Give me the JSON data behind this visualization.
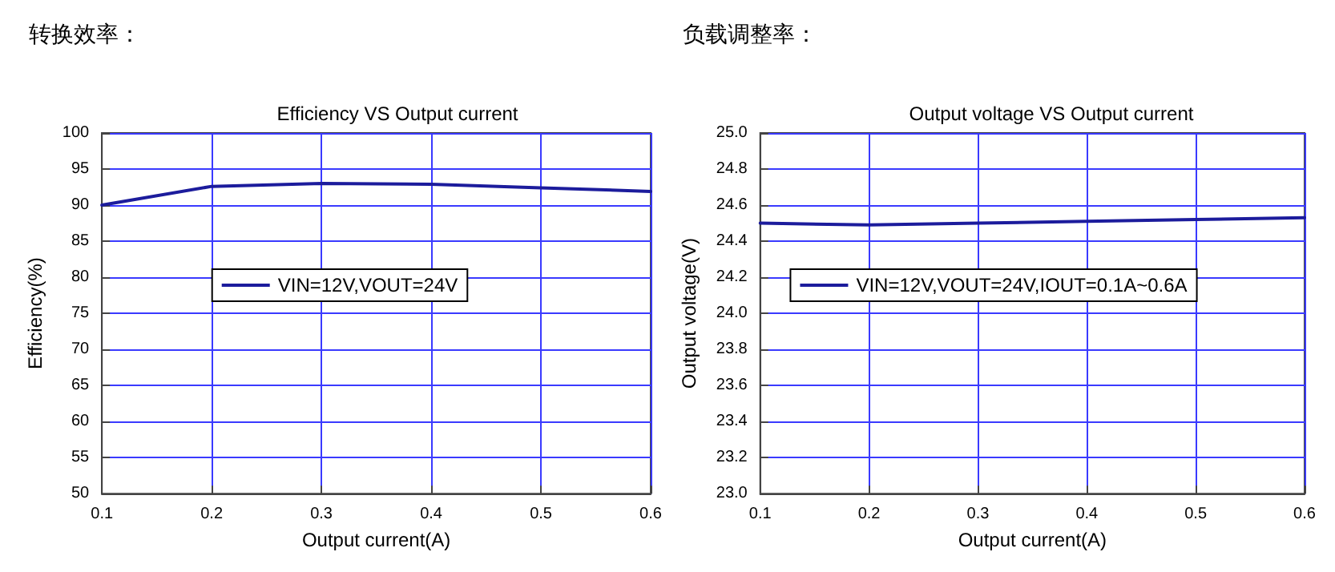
{
  "chart_data": [
    {
      "type": "line",
      "title": "转换效率：",
      "subtitle": "Efficiency VS Output current",
      "xlabel": "Output current(A)",
      "ylabel": "Efficiency(%)",
      "x": [
        0.1,
        0.2,
        0.3,
        0.4,
        0.5,
        0.6
      ],
      "series": [
        {
          "name": "VIN=12V,VOUT=24V",
          "color": "#1c1c9c",
          "values": [
            90,
            92.6,
            93.0,
            92.9,
            92.4,
            91.9
          ]
        }
      ],
      "xlim": [
        0.1,
        0.6
      ],
      "xticks": [
        0.1,
        0.2,
        0.3,
        0.4,
        0.5,
        0.6
      ],
      "ylim": [
        50,
        100
      ],
      "yticks": [
        50,
        55,
        60,
        65,
        70,
        75,
        80,
        85,
        90,
        95,
        100
      ],
      "grid": true,
      "legend": "center",
      "marker": "none",
      "line_style": "solid"
    },
    {
      "type": "line",
      "title": "负载调整率：",
      "subtitle": "Output voltage VS Output current",
      "xlabel": "Output current(A)",
      "ylabel": "Output voltage(V)",
      "x": [
        0.1,
        0.2,
        0.3,
        0.4,
        0.5,
        0.6
      ],
      "series": [
        {
          "name": "VIN=12V,VOUT=24V,IOUT=0.1A~0.6A",
          "color": "#1c1c9c",
          "values": [
            24.5,
            24.49,
            24.5,
            24.51,
            24.52,
            24.53
          ]
        }
      ],
      "xlim": [
        0.1,
        0.6
      ],
      "xticks": [
        0.1,
        0.2,
        0.3,
        0.4,
        0.5,
        0.6
      ],
      "ylim": [
        23.0,
        25.0
      ],
      "yticks": [
        {
          "value": 23.0,
          "label": "23.0"
        },
        23.2,
        23.4,
        23.6,
        23.8,
        {
          "value": 24.0,
          "label": "24.0"
        },
        24.2,
        24.4,
        24.6,
        24.8,
        {
          "value": 25.0,
          "label": "25.0"
        }
      ],
      "grid": true,
      "legend": "center",
      "marker": "none",
      "line_style": "solid"
    }
  ]
}
